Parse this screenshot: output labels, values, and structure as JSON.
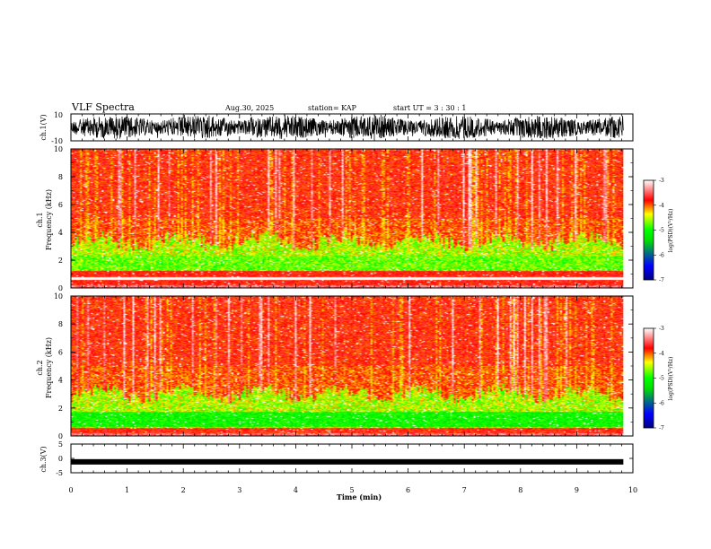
{
  "header": {
    "title": "VLF Spectra",
    "date": "Aug.30, 2025",
    "station": "station= KAP",
    "start": "start  UT  =   3  : 30 : 1"
  },
  "chart_data": [
    {
      "type": "line",
      "name": "ch1-waveform",
      "ylabel": "ch.1(V)",
      "ylim": [
        -10,
        10
      ],
      "yticks": [
        "10",
        "-10"
      ],
      "data_extent_min": 9.83
    },
    {
      "type": "heatmap",
      "name": "ch1-spectrogram",
      "ylabel_line1": "ch.1",
      "ylabel_line2": "Frequency  (kHz)",
      "ylim": [
        0,
        10
      ],
      "yticks": [
        "10",
        "8",
        "6",
        "4",
        "2",
        "0"
      ],
      "colorbar": {
        "label": "log(PSD)(V²/Hz)",
        "ticks": [
          "-3",
          "-4",
          "-5",
          "-6",
          "-7"
        ],
        "range": [
          -7,
          -3
        ]
      }
    },
    {
      "type": "heatmap",
      "name": "ch2-spectrogram",
      "ylabel_line1": "ch.2",
      "ylabel_line2": "Frequency  (kHz)",
      "ylim": [
        0,
        10
      ],
      "yticks": [
        "10",
        "8",
        "6",
        "4",
        "2",
        "0"
      ],
      "colorbar": {
        "label": "log(PSD)(V²/Hz)",
        "ticks": [
          "-3",
          "-4",
          "-5",
          "-6",
          "-7"
        ],
        "range": [
          -7,
          -3
        ]
      }
    },
    {
      "type": "line",
      "name": "ch3-waveform",
      "ylabel": "ch.3(V)",
      "ylim": [
        -5,
        5
      ],
      "yticks": [
        "5",
        "0",
        "-5"
      ],
      "level": -1.2
    }
  ],
  "xaxis": {
    "label": "Time  (min)",
    "ticks": [
      "0",
      "1",
      "2",
      "3",
      "4",
      "5",
      "6",
      "7",
      "8",
      "9",
      "10"
    ],
    "range": [
      0,
      10
    ]
  },
  "colors": {
    "bg": "#ffffff",
    "ink": "#000000",
    "colormap": [
      "#000080",
      "#0000ff",
      "#00e000",
      "#00ff00",
      "#ffff00",
      "#ff0000",
      "#ffffff"
    ]
  }
}
